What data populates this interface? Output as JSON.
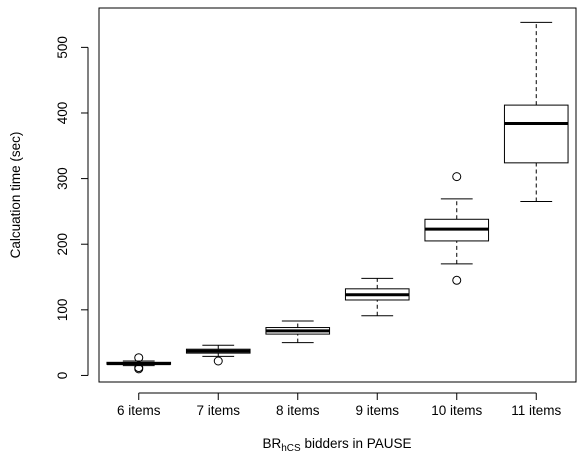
{
  "chart_data": {
    "type": "boxplot",
    "title": "",
    "xlabel": {
      "prefix": "BR",
      "subscript": "hCS",
      "suffix": " bidders in PAUSE"
    },
    "ylabel": "Calcuation time (sec)",
    "ylim": [
      -10,
      560
    ],
    "yticks": [
      0,
      100,
      200,
      300,
      400,
      500
    ],
    "grid": false,
    "categories": [
      "6 items",
      "7 items",
      "8 items",
      "9 items",
      "10 items",
      "11 items"
    ],
    "boxes": [
      {
        "category": "6 items",
        "whisker_low": 15,
        "q1": 17,
        "median": 18,
        "q3": 20,
        "whisker_high": 22,
        "outliers": [
          10,
          12,
          27
        ]
      },
      {
        "category": "7 items",
        "whisker_low": 29,
        "q1": 34,
        "median": 37,
        "q3": 40,
        "whisker_high": 46,
        "outliers": [
          22
        ]
      },
      {
        "category": "8 items",
        "whisker_low": 50,
        "q1": 63,
        "median": 68,
        "q3": 73,
        "whisker_high": 83,
        "outliers": []
      },
      {
        "category": "9 items",
        "whisker_low": 91,
        "q1": 115,
        "median": 123,
        "q3": 132,
        "whisker_high": 148,
        "outliers": []
      },
      {
        "category": "10 items",
        "whisker_low": 170,
        "q1": 205,
        "median": 223,
        "q3": 238,
        "whisker_high": 269,
        "outliers": [
          145,
          303
        ]
      },
      {
        "category": "11 items",
        "whisker_low": 265,
        "q1": 324,
        "median": 384,
        "q3": 412,
        "whisker_high": 538,
        "outliers": []
      }
    ]
  }
}
